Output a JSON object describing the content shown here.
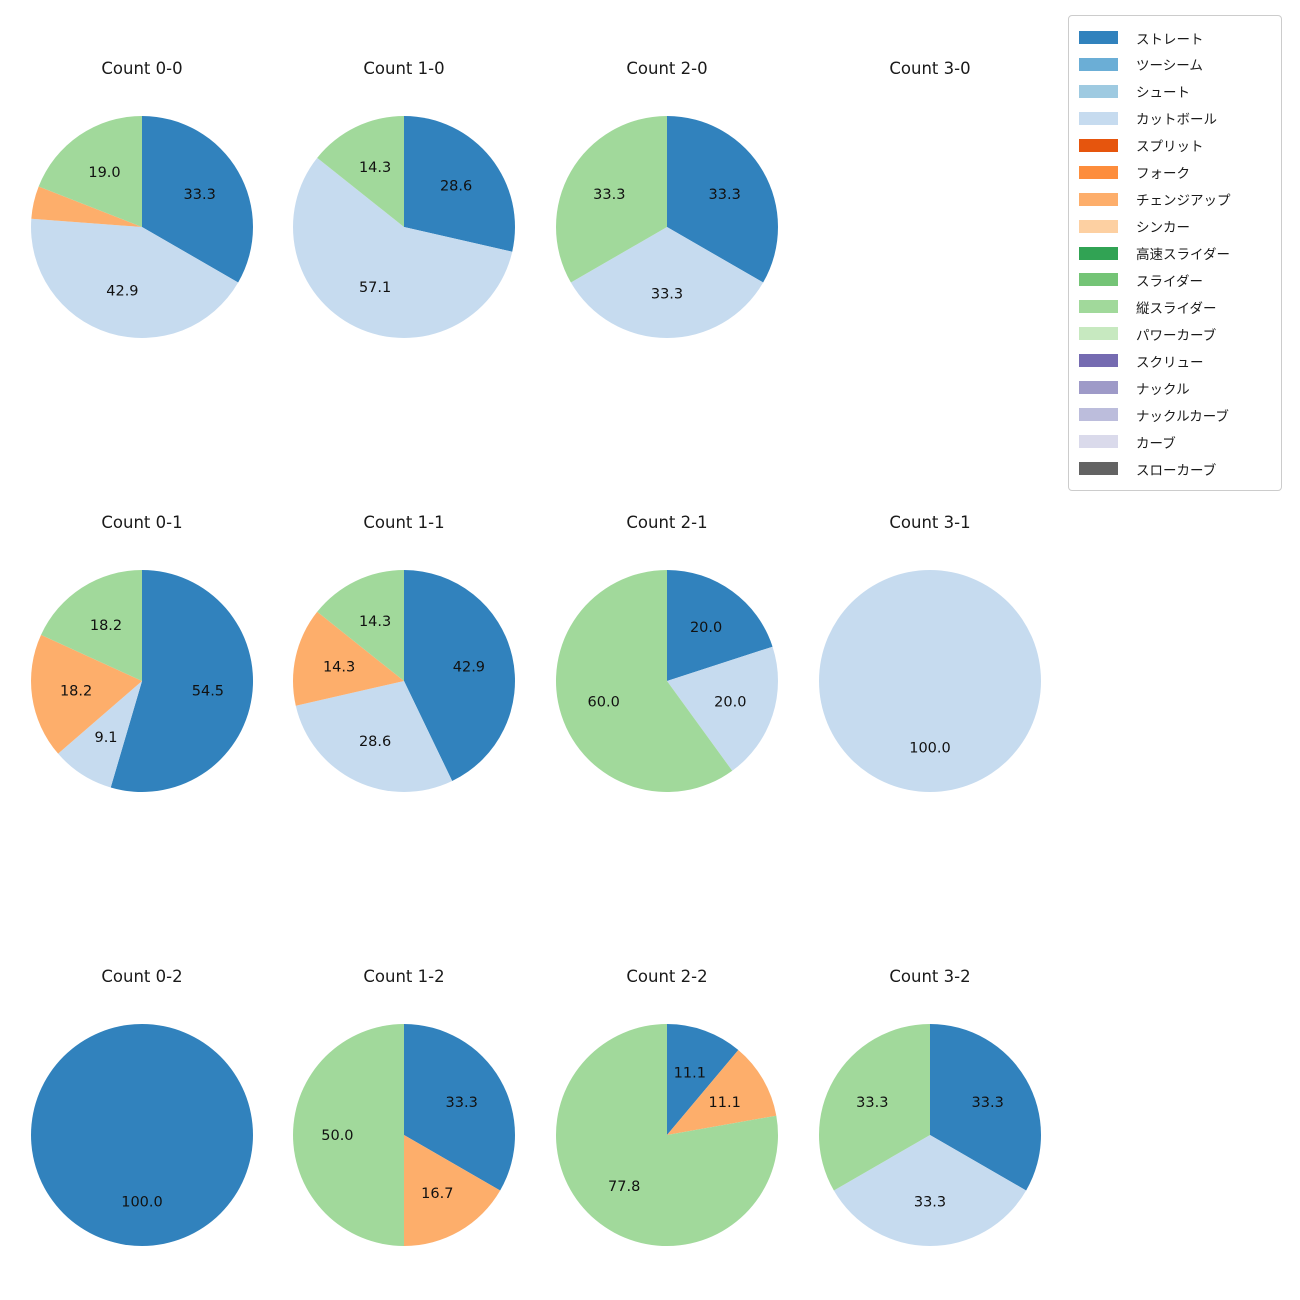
{
  "palette": {
    "ストレート": "#3182bd",
    "ツーシーム": "#6baed6",
    "シュート": "#9ecae1",
    "カットボール": "#c6dbef",
    "スプリット": "#e6550d",
    "フォーク": "#fd8d3c",
    "チェンジアップ": "#fdae6b",
    "シンカー": "#fdd0a2",
    "高速スライダー": "#31a354",
    "スライダー": "#74c476",
    "縦スライダー": "#a1d99b",
    "パワーカーブ": "#c7e9c0",
    "スクリュー": "#756bb1",
    "ナックル": "#9e9ac8",
    "ナックルカーブ": "#bcbddc",
    "カーブ": "#dadaeb",
    "スローカーブ": "#636363"
  },
  "legend": {
    "items": [
      "ストレート",
      "ツーシーム",
      "シュート",
      "カットボール",
      "スプリット",
      "フォーク",
      "チェンジアップ",
      "シンカー",
      "高速スライダー",
      "スライダー",
      "縦スライダー",
      "パワーカーブ",
      "スクリュー",
      "ナックル",
      "ナックルカーブ",
      "カーブ",
      "スローカーブ"
    ]
  },
  "chart_data": {
    "type": "pie",
    "layout": "4-cols-3-rows-grid",
    "unit": "percent",
    "legend_position": "upper right",
    "slice_order": "clockwise-from-top",
    "pies": [
      {
        "title": "Count 0-0",
        "slices": [
          {
            "name": "ストレート",
            "value": 33.33,
            "label": "33.3"
          },
          {
            "name": "カットボール",
            "value": 42.86,
            "label": "42.9"
          },
          {
            "name": "チェンジアップ",
            "value": 4.76,
            "label": ""
          },
          {
            "name": "縦スライダー",
            "value": 19.05,
            "label": "19.0"
          }
        ]
      },
      {
        "title": "Count 1-0",
        "slices": [
          {
            "name": "ストレート",
            "value": 28.57,
            "label": "28.6"
          },
          {
            "name": "カットボール",
            "value": 57.14,
            "label": "57.1"
          },
          {
            "name": "縦スライダー",
            "value": 14.29,
            "label": "14.3"
          }
        ]
      },
      {
        "title": "Count 2-0",
        "slices": [
          {
            "name": "ストレート",
            "value": 33.33,
            "label": "33.3"
          },
          {
            "name": "カットボール",
            "value": 33.33,
            "label": "33.3"
          },
          {
            "name": "縦スライダー",
            "value": 33.33,
            "label": "33.3"
          }
        ]
      },
      {
        "title": "Count 3-0",
        "slices": []
      },
      {
        "title": "Count 0-1",
        "slices": [
          {
            "name": "ストレート",
            "value": 54.55,
            "label": "54.5"
          },
          {
            "name": "カットボール",
            "value": 9.09,
            "label": "9.1"
          },
          {
            "name": "チェンジアップ",
            "value": 18.18,
            "label": "18.2"
          },
          {
            "name": "縦スライダー",
            "value": 18.18,
            "label": "18.2"
          }
        ]
      },
      {
        "title": "Count 1-1",
        "slices": [
          {
            "name": "ストレート",
            "value": 42.86,
            "label": "42.9"
          },
          {
            "name": "カットボール",
            "value": 28.57,
            "label": "28.6"
          },
          {
            "name": "チェンジアップ",
            "value": 14.29,
            "label": "14.3"
          },
          {
            "name": "縦スライダー",
            "value": 14.29,
            "label": "14.3"
          }
        ]
      },
      {
        "title": "Count 2-1",
        "slices": [
          {
            "name": "ストレート",
            "value": 20.0,
            "label": "20.0"
          },
          {
            "name": "カットボール",
            "value": 20.0,
            "label": "20.0"
          },
          {
            "name": "縦スライダー",
            "value": 60.0,
            "label": "60.0"
          }
        ]
      },
      {
        "title": "Count 3-1",
        "slices": [
          {
            "name": "カットボール",
            "value": 100.0,
            "label": "100.0"
          }
        ]
      },
      {
        "title": "Count 0-2",
        "slices": [
          {
            "name": "ストレート",
            "value": 100.0,
            "label": "100.0"
          }
        ]
      },
      {
        "title": "Count 1-2",
        "slices": [
          {
            "name": "ストレート",
            "value": 33.33,
            "label": "33.3"
          },
          {
            "name": "チェンジアップ",
            "value": 16.67,
            "label": "16.7"
          },
          {
            "name": "縦スライダー",
            "value": 50.0,
            "label": "50.0"
          }
        ]
      },
      {
        "title": "Count 2-2",
        "slices": [
          {
            "name": "ストレート",
            "value": 11.11,
            "label": "11.1"
          },
          {
            "name": "チェンジアップ",
            "value": 11.11,
            "label": "11.1"
          },
          {
            "name": "縦スライダー",
            "value": 77.78,
            "label": "77.8"
          }
        ]
      },
      {
        "title": "Count 3-2",
        "slices": [
          {
            "name": "ストレート",
            "value": 33.33,
            "label": "33.3"
          },
          {
            "name": "カットボール",
            "value": 33.33,
            "label": "33.3"
          },
          {
            "name": "縦スライダー",
            "value": 33.33,
            "label": "33.3"
          }
        ]
      }
    ]
  }
}
